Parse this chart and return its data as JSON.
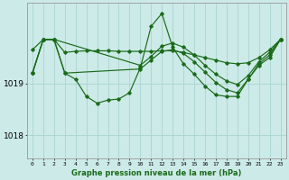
{
  "background_color": "#cceae7",
  "grid_color": "#aad4d0",
  "line_color": "#1a6b1a",
  "marker_color": "#1a6b1a",
  "xlabel": "Graphe pression niveau de la mer (hPa)",
  "ytick_labels": [
    "1018",
    "1019"
  ],
  "ytick_vals": [
    1018.0,
    1019.0
  ],
  "xlim": [
    -0.5,
    23.5
  ],
  "ylim": [
    1017.55,
    1020.55
  ],
  "line1_x": [
    0,
    1,
    2,
    3,
    4,
    5,
    6,
    7,
    8,
    9,
    10,
    11,
    12,
    13,
    14,
    15,
    16,
    17,
    18,
    19,
    20,
    21,
    22,
    23
  ],
  "line1_y": [
    1019.65,
    1019.85,
    1019.85,
    1019.6,
    1019.62,
    1019.63,
    1019.63,
    1019.63,
    1019.62,
    1019.62,
    1019.62,
    1019.62,
    1019.63,
    1019.63,
    1019.6,
    1019.55,
    1019.5,
    1019.45,
    1019.4,
    1019.38,
    1019.4,
    1019.5,
    1019.65,
    1019.85
  ],
  "line2_x": [
    0,
    1,
    2,
    3,
    4,
    5,
    6,
    7,
    8,
    9,
    10,
    11,
    12,
    13,
    14,
    15,
    16,
    17,
    18,
    19,
    20,
    21,
    22,
    23
  ],
  "line2_y": [
    1019.2,
    1019.85,
    1019.85,
    1019.2,
    1019.08,
    1018.75,
    1018.62,
    1018.68,
    1018.7,
    1018.82,
    1019.3,
    1020.1,
    1020.35,
    1019.7,
    1019.38,
    1019.18,
    1018.95,
    1018.78,
    1018.75,
    1018.75,
    1019.08,
    1019.38,
    1019.55,
    1019.85
  ],
  "line3_x": [
    0,
    1,
    2,
    3,
    10,
    11,
    12,
    13,
    14,
    15,
    16,
    17,
    18,
    19,
    20,
    21,
    22,
    23
  ],
  "line3_y": [
    1019.2,
    1019.85,
    1019.85,
    1019.2,
    1019.28,
    1019.45,
    1019.62,
    1019.65,
    1019.58,
    1019.42,
    1019.22,
    1019.02,
    1018.88,
    1018.82,
    1019.08,
    1019.35,
    1019.5,
    1019.85
  ],
  "line4_x": [
    0,
    1,
    2,
    10,
    11,
    12,
    13,
    14,
    15,
    16,
    17,
    18,
    19,
    20,
    21,
    22,
    23
  ],
  "line4_y": [
    1019.2,
    1019.85,
    1019.85,
    1019.35,
    1019.52,
    1019.72,
    1019.78,
    1019.7,
    1019.55,
    1019.35,
    1019.18,
    1019.05,
    1018.98,
    1019.15,
    1019.42,
    1019.6,
    1019.85
  ]
}
